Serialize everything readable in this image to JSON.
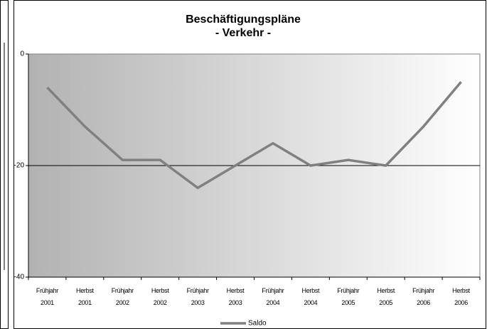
{
  "chart_data": {
    "type": "line",
    "title": [
      "Beschäftigungspläne",
      "- Verkehr -"
    ],
    "categories": [
      "Frühjahr 2001",
      "Herbst 2001",
      "Frühjahr 2002",
      "Herbst 2002",
      "Frühjahr 2003",
      "Herbst 2003",
      "Frühjahr 2004",
      "Herbst 2004",
      "Frühjahr 2005",
      "Herbst 2005",
      "Frühjahr 2006",
      "Herbst 2006"
    ],
    "series": [
      {
        "name": "Saldo",
        "color": "#808080",
        "values": [
          -6,
          -13,
          -19,
          -19,
          -24,
          -20,
          -16,
          -20,
          -19,
          -20,
          -13,
          -5
        ]
      }
    ],
    "ylim": [
      -40,
      0
    ],
    "yticks": [
      0,
      -20,
      -40
    ],
    "grid": true
  }
}
